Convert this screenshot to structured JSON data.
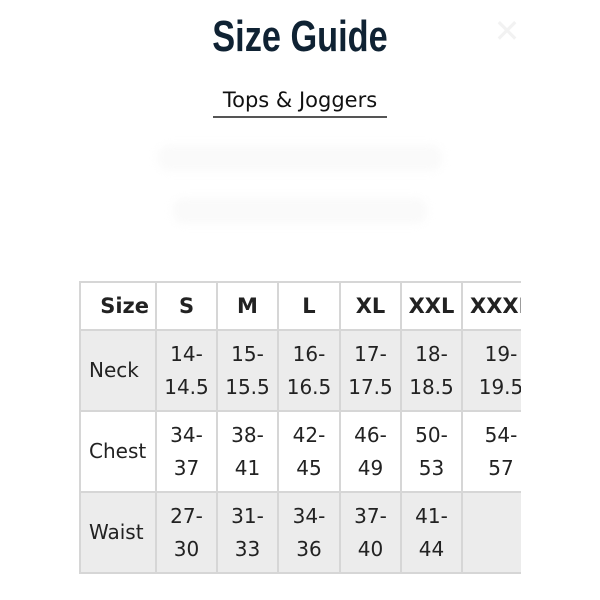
{
  "title": "Size Guide",
  "subtitle": "Tops & Joggers",
  "close_icon": "close-icon",
  "table": {
    "header": [
      "Size",
      "S",
      "M",
      "L",
      "XL",
      "XXL",
      "XXXL"
    ],
    "rows": [
      {
        "label": "Neck",
        "values": [
          "14-\n14.5",
          "15-\n15.5",
          "16-\n16.5",
          "17-\n17.5",
          "18-\n18.5",
          "19-\n19.5"
        ]
      },
      {
        "label": "Chest",
        "values": [
          "34-\n37",
          "38-\n41",
          "42-\n45",
          "46-\n49",
          "50-\n53",
          "54-\n57"
        ]
      },
      {
        "label": "Waist",
        "values": [
          "27-\n30",
          "31-\n33",
          "34-\n36",
          "37-\n40",
          "41-\n44",
          ""
        ]
      }
    ]
  }
}
